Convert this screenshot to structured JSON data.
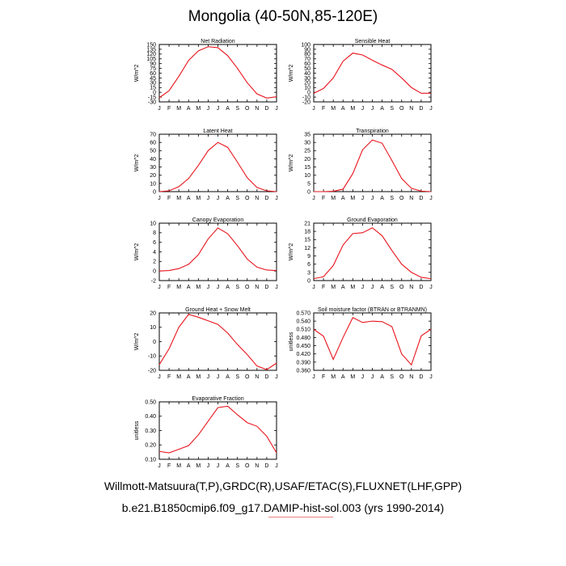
{
  "title": "Mongolia (40-50N,85-120E)",
  "footer": {
    "line1": "Willmott-Matsuura(T,P),GRDC(R),USAF/ETAC(S),FLUXNET(LHF,GPP)",
    "line2": "b.e21.B1850cmip6.f09_g17.DAMIP-hist-sol.003 (yrs 1990-2014)"
  },
  "colors": {
    "line": "#e8141c",
    "axis": "#000000"
  },
  "chart_data": [
    {
      "type": "line",
      "title": "Net Radiation",
      "ylabel": "W/m^2",
      "categories": [
        "J",
        "F",
        "M",
        "A",
        "M",
        "J",
        "J",
        "A",
        "S",
        "O",
        "N",
        "D",
        "J"
      ],
      "ylim": [
        -30,
        150
      ],
      "yticks": [
        -30,
        -15,
        0,
        15,
        30,
        45,
        60,
        75,
        90,
        105,
        120,
        135,
        150
      ],
      "ytick_labels": [
        "-30",
        "-15",
        "0",
        "15",
        "30",
        "45",
        "60",
        "75",
        "90",
        "105",
        "120",
        "135",
        "150"
      ],
      "values": [
        -17,
        5,
        50,
        100,
        130,
        143,
        140,
        115,
        75,
        30,
        -5,
        -18,
        -14
      ]
    },
    {
      "type": "line",
      "title": "Sensible Heat",
      "ylabel": "W/m^2",
      "categories": [
        "J",
        "F",
        "M",
        "A",
        "M",
        "J",
        "J",
        "A",
        "S",
        "O",
        "N",
        "D",
        "J"
      ],
      "ylim": [
        -20,
        100
      ],
      "yticks": [
        -20,
        -10,
        0,
        10,
        20,
        30,
        40,
        50,
        60,
        70,
        80,
        90,
        100
      ],
      "ytick_labels": [
        "-20",
        "-10",
        "0",
        "10",
        "20",
        "30",
        "40",
        "50",
        "60",
        "70",
        "80",
        "90",
        "100"
      ],
      "values": [
        -2,
        8,
        30,
        65,
        82,
        78,
        67,
        57,
        48,
        30,
        10,
        -2,
        -2
      ]
    },
    {
      "type": "line",
      "title": "Latent Heat",
      "ylabel": "W/m^2",
      "categories": [
        "J",
        "F",
        "M",
        "A",
        "M",
        "J",
        "J",
        "A",
        "S",
        "O",
        "N",
        "D",
        "J"
      ],
      "ylim": [
        0,
        70
      ],
      "yticks": [
        0,
        10,
        20,
        30,
        40,
        50,
        60,
        70
      ],
      "ytick_labels": [
        "0",
        "10",
        "20",
        "30",
        "40",
        "50",
        "60",
        "70"
      ],
      "values": [
        0,
        1,
        6,
        16,
        32,
        50,
        60,
        54,
        36,
        17,
        5,
        1,
        0
      ]
    },
    {
      "type": "line",
      "title": "Transpiration",
      "ylabel": "W/m^2",
      "categories": [
        "J",
        "F",
        "M",
        "A",
        "M",
        "J",
        "J",
        "A",
        "S",
        "O",
        "N",
        "D",
        "J"
      ],
      "ylim": [
        0,
        35
      ],
      "yticks": [
        0,
        5,
        10,
        15,
        20,
        25,
        30,
        35
      ],
      "ytick_labels": [
        "0",
        "5",
        "10",
        "15",
        "20",
        "25",
        "30",
        "35"
      ],
      "values": [
        0,
        0,
        0.2,
        1.5,
        11,
        25.5,
        31.5,
        29.5,
        19,
        8,
        2,
        0.3,
        0
      ]
    },
    {
      "type": "line",
      "title": "Canopy Evaporation",
      "ylabel": "W/m^2",
      "categories": [
        "J",
        "F",
        "M",
        "A",
        "M",
        "J",
        "J",
        "A",
        "S",
        "O",
        "N",
        "D",
        "J"
      ],
      "ylim": [
        -2,
        10
      ],
      "yticks": [
        -2,
        0,
        2,
        4,
        6,
        8,
        10
      ],
      "ytick_labels": [
        "-2",
        "0",
        "2",
        "4",
        "6",
        "8",
        "10"
      ],
      "values": [
        0,
        0.1,
        0.5,
        1.4,
        3.4,
        6.7,
        9,
        7.8,
        5.3,
        2.5,
        0.8,
        0.2,
        0.1
      ]
    },
    {
      "type": "line",
      "title": "Ground Evaporation",
      "ylabel": "W/m^2",
      "categories": [
        "J",
        "F",
        "M",
        "A",
        "M",
        "J",
        "J",
        "A",
        "S",
        "O",
        "N",
        "D",
        "J"
      ],
      "ylim": [
        0,
        21
      ],
      "yticks": [
        0,
        3,
        6,
        9,
        12,
        15,
        18,
        21
      ],
      "ytick_labels": [
        "0",
        "3",
        "6",
        "9",
        "12",
        "15",
        "18",
        "21"
      ],
      "values": [
        0.7,
        1.4,
        5.5,
        13,
        17.2,
        17.5,
        19.3,
        16.4,
        11,
        6,
        3,
        1.2,
        0.7
      ]
    },
    {
      "type": "line",
      "title": "Ground Heat + Snow Melt",
      "ylabel": "W/m^2",
      "categories": [
        "J",
        "F",
        "M",
        "A",
        "M",
        "J",
        "J",
        "A",
        "S",
        "O",
        "N",
        "D",
        "J"
      ],
      "ylim": [
        -20,
        20
      ],
      "yticks": [
        -20,
        -10,
        0,
        10,
        20
      ],
      "ytick_labels": [
        "-20",
        "-10",
        "0",
        "10",
        "20"
      ],
      "values": [
        -16,
        -5,
        10,
        19,
        17,
        14.5,
        12,
        6,
        -2,
        -9,
        -17,
        -19.5,
        -15
      ]
    },
    {
      "type": "line",
      "title": "Soil moisture factor (BTRAN or BTRANMN)",
      "ylabel": "unitless",
      "categories": [
        "J",
        "F",
        "M",
        "A",
        "M",
        "J",
        "J",
        "A",
        "S",
        "O",
        "N",
        "D",
        "J"
      ],
      "ylim": [
        0.36,
        0.57
      ],
      "yticks": [
        0.36,
        0.39,
        0.42,
        0.45,
        0.48,
        0.51,
        0.54,
        0.57
      ],
      "ytick_labels": [
        "0.360",
        "0.390",
        "0.420",
        "0.450",
        "0.480",
        "0.510",
        "0.540",
        "0.570"
      ],
      "values": [
        0.51,
        0.485,
        0.4,
        0.48,
        0.553,
        0.535,
        0.54,
        0.538,
        0.52,
        0.42,
        0.38,
        0.486,
        0.51
      ]
    },
    {
      "type": "line",
      "title": "Evaporative Fraction",
      "ylabel": "unitless",
      "categories": [
        "J",
        "F",
        "M",
        "A",
        "M",
        "J",
        "J",
        "A",
        "S",
        "O",
        "N",
        "D",
        "J"
      ],
      "ylim": [
        0.1,
        0.5
      ],
      "yticks": [
        0.1,
        0.2,
        0.3,
        0.4,
        0.5
      ],
      "ytick_labels": [
        "0.10",
        "0.20",
        "0.30",
        "0.40",
        "0.50"
      ],
      "values": [
        0.155,
        0.145,
        0.17,
        0.195,
        0.27,
        0.365,
        0.46,
        0.47,
        0.41,
        0.355,
        0.33,
        0.26,
        0.145
      ]
    }
  ]
}
